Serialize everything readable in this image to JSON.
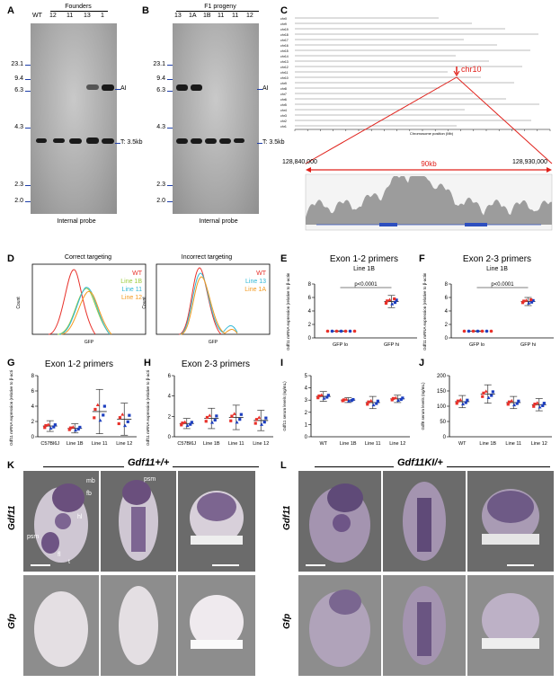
{
  "panels": {
    "A": {
      "letter": "A",
      "header": "Founders",
      "lanes": [
        "WT",
        "12",
        "11",
        "13",
        "1"
      ],
      "markers": [
        "23.1",
        "9.4",
        "6.3",
        "4.3",
        "2.3",
        "2.0"
      ],
      "band_labels": [
        "AI",
        "T: 3.5kb"
      ],
      "probe": "Internal probe"
    },
    "B": {
      "letter": "B",
      "header": "F1 progeny",
      "lanes": [
        "13",
        "1A",
        "1B",
        "11",
        "11",
        "12"
      ],
      "markers": [
        "23.1",
        "9.4",
        "6.3",
        "4.3",
        "2.3",
        "2.0"
      ],
      "band_labels": [
        "AI",
        "T: 3.5kb"
      ],
      "probe": "Internal probe"
    },
    "C": {
      "letter": "C",
      "chromosomes": [
        "chrX",
        "chr9",
        "chr19",
        "chr18",
        "chr17",
        "chr16",
        "chr15",
        "chr14",
        "chr13",
        "chr12",
        "chr11",
        "chr10",
        "chr9",
        "chr8",
        "chr7",
        "chr6",
        "chr5",
        "chr4",
        "chr3",
        "chr2",
        "chr1"
      ],
      "highlight": "chr10",
      "axis_label": "Chromosome position (Mb)",
      "range_start": "128,840,000",
      "range_end": "128,930,000",
      "range_width": "90kb"
    },
    "D": {
      "letter": "D",
      "left_title": "Correct targeting",
      "right_title": "Incorrect targeting",
      "xlabel": "GFP",
      "ylabel": "Count",
      "left_legend": [
        "WT",
        "Line 1B",
        "Line 11",
        "Line 12"
      ],
      "right_legend": [
        "WT",
        "Line 13",
        "Line 1A"
      ],
      "colors": {
        "WT": "#e8312a",
        "Line 1B": "#9ccc3c",
        "Line 11": "#2fb7d6",
        "Line 12": "#f39a1f",
        "Line 13": "#2fb7d6",
        "Line 1A": "#f39a1f"
      }
    },
    "E": {
      "letter": "E",
      "title": "Exon 1-2 primers",
      "subtitle": "Line 1B",
      "pvalue": "p<0.0001",
      "ylabel": "Gdf11 mRNA expression (relative to β-actin)",
      "yticks": [
        "0",
        "2",
        "4",
        "6",
        "8"
      ],
      "categories": [
        "GFP lo",
        "GFP hi"
      ]
    },
    "F": {
      "letter": "F",
      "title": "Exon 2-3 primers",
      "subtitle": "Line 1B",
      "pvalue": "p<0.0001",
      "ylabel": "Gdf11 mRNA expression (relative to β-actin)",
      "yticks": [
        "0",
        "2",
        "4",
        "6",
        "8"
      ],
      "categories": [
        "GFP lo",
        "GFP hi"
      ]
    },
    "G": {
      "letter": "G",
      "title": "Exon 1-2 primers",
      "ylabel": "Gdf11 mRNA expression (relative to β-actin)",
      "yticks": [
        "0",
        "2",
        "4",
        "6",
        "8"
      ],
      "categories": [
        "C57Bl6J",
        "Line 1B",
        "Line 11",
        "Line 12"
      ]
    },
    "H": {
      "letter": "H",
      "title": "Exon 2-3 primers",
      "ylabel": "Gdf11 mRNA expression (relative to β-actin)",
      "yticks": [
        "0",
        "2",
        "4",
        "6"
      ],
      "categories": [
        "C57Bl6J",
        "Line 1B",
        "Line 11",
        "Line 12"
      ]
    },
    "I": {
      "letter": "I",
      "ylabel": "Gdf11 serum levels (ng/mL)",
      "yticks": [
        "0",
        "1",
        "2",
        "3",
        "4",
        "5"
      ],
      "categories": [
        "WT",
        "Line 1B",
        "Line 11",
        "Line 12"
      ]
    },
    "J": {
      "letter": "J",
      "ylabel": "Gdf8 serum levels (ng/mL)",
      "yticks": [
        "0",
        "50",
        "100",
        "150",
        "200"
      ],
      "categories": [
        "WT",
        "Line 1B",
        "Line 11",
        "Line 12"
      ]
    },
    "K": {
      "letter": "K",
      "genotype": "Gdf11+/+",
      "row_labels": [
        "Gdf11",
        "Gfp"
      ],
      "annotations": [
        "mb",
        "fb",
        "hl",
        "psm",
        "fl",
        "t",
        "psm"
      ]
    },
    "L": {
      "letter": "L",
      "genotype": "Gdf11KI/+",
      "row_labels": [
        "Gdf11",
        "Gfp"
      ]
    }
  },
  "chart_data": [
    {
      "type": "scatter",
      "panel": "E",
      "title": "Exon 1-2 primers",
      "categories": [
        "GFP lo",
        "GFP hi"
      ],
      "ylim": [
        0,
        8
      ],
      "series": [
        {
          "values": [
            1.0,
            5.4
          ]
        }
      ]
    },
    {
      "type": "scatter",
      "panel": "F",
      "title": "Exon 2-3 primers",
      "categories": [
        "GFP lo",
        "GFP hi"
      ],
      "ylim": [
        0,
        8
      ],
      "series": [
        {
          "values": [
            1.0,
            5.4
          ]
        }
      ]
    },
    {
      "type": "scatter",
      "panel": "G",
      "title": "Exon 1-2 primers",
      "categories": [
        "C57Bl6J",
        "Line 1B",
        "Line 11",
        "Line 12"
      ],
      "ylim": [
        0,
        8
      ],
      "series": [
        {
          "values": [
            1.4,
            1.1,
            3.3,
            2.3
          ]
        }
      ]
    },
    {
      "type": "scatter",
      "panel": "H",
      "title": "Exon 2-3 primers",
      "categories": [
        "C57Bl6J",
        "Line 1B",
        "Line 11",
        "Line 12"
      ],
      "ylim": [
        0,
        6
      ],
      "series": [
        {
          "values": [
            1.3,
            1.8,
            1.9,
            1.6
          ]
        }
      ]
    },
    {
      "type": "scatter",
      "panel": "I",
      "categories": [
        "WT",
        "Line 1B",
        "Line 11",
        "Line 12"
      ],
      "ylim": [
        0,
        5
      ],
      "series": [
        {
          "values": [
            3.3,
            3.0,
            2.8,
            3.1
          ]
        }
      ]
    },
    {
      "type": "scatter",
      "panel": "J",
      "categories": [
        "WT",
        "Line 1B",
        "Line 11",
        "Line 12"
      ],
      "ylim": [
        0,
        200
      ],
      "series": [
        {
          "values": [
            115,
            140,
            112,
            105
          ]
        }
      ]
    }
  ]
}
